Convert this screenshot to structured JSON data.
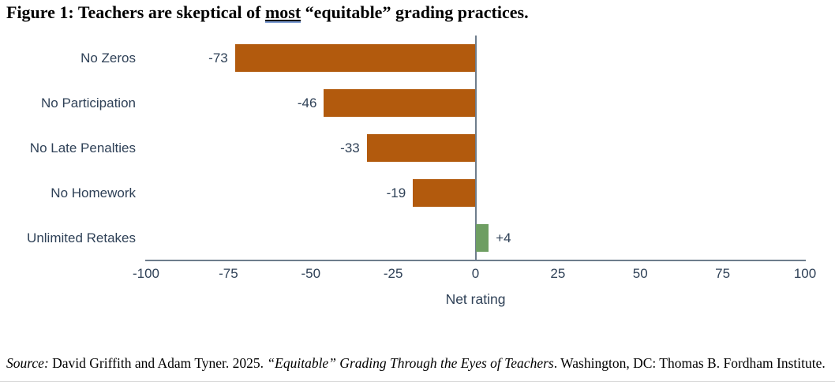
{
  "title": {
    "prefix": "Figure 1: Teachers are skeptical of ",
    "underlined_word": "most",
    "suffix": " “equitable” grading practices."
  },
  "chart_data": {
    "type": "bar",
    "orientation": "horizontal",
    "categories": [
      "No Zeros",
      "No Participation",
      "No Late Penalties",
      "No Homework",
      "Unlimited Retakes"
    ],
    "values": [
      -73,
      -46,
      -33,
      -19,
      4
    ],
    "data_labels": [
      "-73",
      "-46",
      "-33",
      "-19",
      "+4"
    ],
    "xlabel": "Net rating",
    "xlim": [
      -100,
      100
    ],
    "x_ticks": [
      -100,
      -75,
      -50,
      -25,
      0,
      25,
      50,
      75,
      100
    ],
    "grid": false,
    "legend": "none",
    "colors": {
      "negative_bar": "#B25A0D",
      "positive_bar": "#6E9E62",
      "axis_line": "#6E7D8C",
      "text": "#2F4157"
    }
  },
  "source": {
    "label": "Source:",
    "text1": " David Griffith and Adam Tyner. 2025. ",
    "italic_title": "“Equitable” Grading Through the Eyes of Teachers",
    "text2": ". Washington, DC: Thomas B. Fordham Institute."
  }
}
